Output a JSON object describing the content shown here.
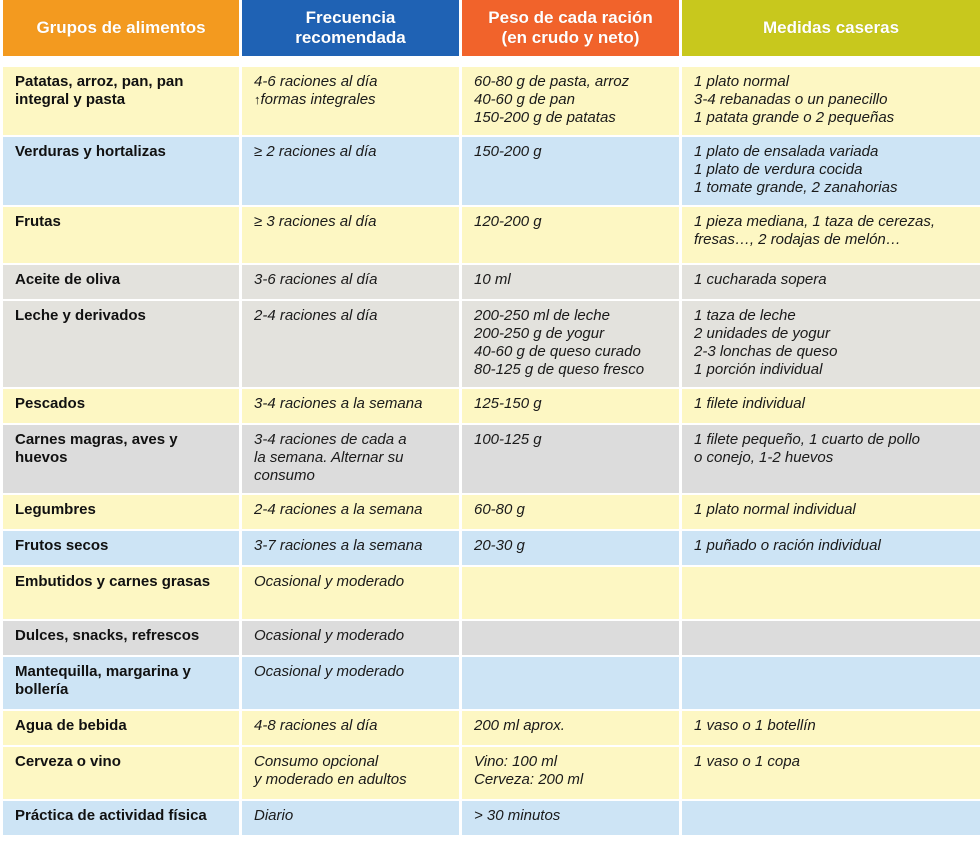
{
  "header": {
    "col1": "Grupos de alimentos",
    "col2_line1": "Frecuencia",
    "col2_line2": "recomendada",
    "col3_line1": "Peso de cada ración",
    "col3_line2": "(en crudo y neto)",
    "col4": "Medidas caseras"
  },
  "rows": [
    {
      "group": "Patatas, arroz, pan, pan integral y pasta",
      "freq_1": "4-6 raciones al día",
      "freq_arrow": "🠕",
      "freq_2": "formas integrales",
      "peso": [
        "60-80 g de pasta, arroz",
        "40-60 g de pan",
        "150-200 g de patatas"
      ],
      "medidas": [
        "1 plato normal",
        "3-4 rebanadas o un panecillo",
        "1 patata grande o 2 pequeñas"
      ]
    },
    {
      "group": "Verduras y hortalizas",
      "freq": "≥ 2 raciones al día",
      "peso": [
        "150-200 g"
      ],
      "medidas": [
        "1 plato de ensalada variada",
        "1 plato de verdura cocida",
        "1 tomate grande, 2 zanahorias"
      ]
    },
    {
      "group": "Frutas",
      "freq": "≥ 3 raciones al día",
      "peso": [
        "120-200 g"
      ],
      "medidas": [
        "1 pieza mediana, 1 taza de cerezas,",
        "fresas…, 2 rodajas de melón…"
      ]
    },
    {
      "group": "Aceite de oliva",
      "freq": "3-6 raciones al día",
      "peso": [
        "10 ml"
      ],
      "medidas": [
        "1 cucharada sopera"
      ]
    },
    {
      "group": "Leche y derivados",
      "freq": "2-4 raciones al día",
      "peso": [
        "200-250 ml de leche",
        "200-250 g de yogur",
        "40-60 g de queso curado",
        "80-125 g de queso fresco"
      ],
      "medidas": [
        "1 taza de leche",
        "2 unidades de yogur",
        "2-3 lonchas de queso",
        "1 porción individual"
      ]
    },
    {
      "group": "Pescados",
      "freq": "3-4 raciones a la semana",
      "peso": [
        "125-150 g"
      ],
      "medidas": [
        "1 filete individual"
      ]
    },
    {
      "group": "Carnes magras, aves y huevos",
      "freq_lines": [
        "3-4 raciones de cada a",
        "la semana. Alternar su",
        "consumo"
      ],
      "peso": [
        "100-125 g"
      ],
      "medidas": [
        "1 filete pequeño, 1 cuarto de pollo",
        "o conejo, 1-2 huevos"
      ]
    },
    {
      "group": "Legumbres",
      "freq": "2-4 raciones a la semana",
      "peso": [
        "60-80 g"
      ],
      "medidas": [
        "1 plato normal individual"
      ]
    },
    {
      "group": "Frutos secos",
      "freq": "3-7 raciones a la semana",
      "peso": [
        "20-30 g"
      ],
      "medidas": [
        "1 puñado o ración individual"
      ]
    },
    {
      "group": "Embutidos y carnes grasas",
      "freq": "Ocasional y moderado"
    },
    {
      "group": "Dulces, snacks, refrescos",
      "freq": "Ocasional y moderado"
    },
    {
      "group": "Mantequilla, margarina y bollería",
      "freq": "Ocasional y moderado"
    },
    {
      "group": "Agua de bebida",
      "freq": "4-8 raciones al día",
      "peso": [
        "200 ml aprox."
      ],
      "medidas": [
        "1 vaso o 1 botellín"
      ]
    },
    {
      "group": "Cerveza o vino",
      "freq_lines": [
        "Consumo opcional",
        "y moderado en adultos"
      ],
      "peso": [
        "Vino: 100 ml",
        "Cerveza: 200 ml"
      ],
      "medidas": [
        "1 vaso o 1 copa"
      ]
    },
    {
      "group": "Práctica de actividad física",
      "freq": "Diario",
      "peso": [
        "> 30 minutos"
      ]
    }
  ],
  "colors": {
    "header_orange": "#f39a1f",
    "header_blue": "#1f62b4",
    "header_red": "#f1632b",
    "header_olive": "#c8c81d",
    "row_yellow": "#fdf7c3",
    "row_blue": "#cde4f5",
    "row_gray": "#e3e2dd"
  }
}
